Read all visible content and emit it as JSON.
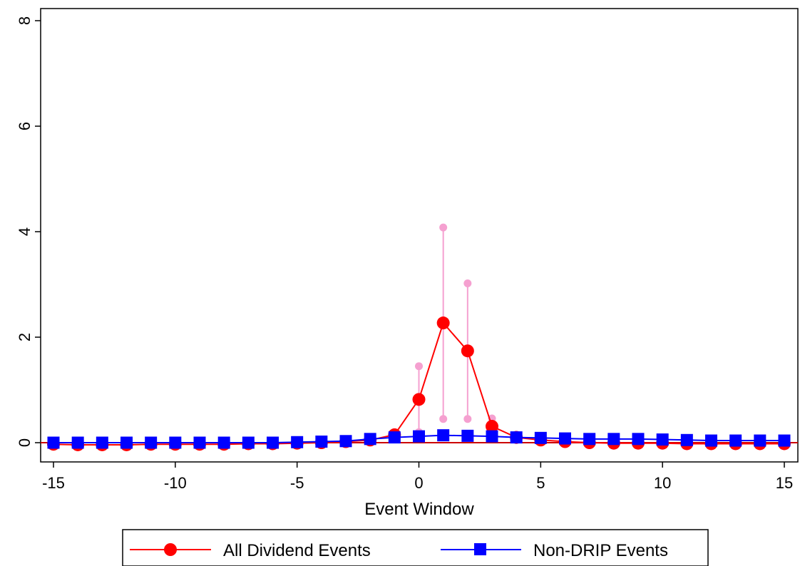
{
  "chart_data": {
    "type": "line",
    "title": "",
    "xlabel": "Event Window",
    "ylabel": "",
    "xlim": [
      -15,
      15
    ],
    "ylim": [
      -0.3,
      8.2
    ],
    "xticks": [
      -15,
      -10,
      -5,
      0,
      5,
      10,
      15
    ],
    "yticks": [
      0,
      2,
      4,
      6,
      8
    ],
    "x": [
      -15,
      -14,
      -13,
      -12,
      -11,
      -10,
      -9,
      -8,
      -7,
      -6,
      -5,
      -4,
      -3,
      -2,
      -1,
      0,
      1,
      2,
      3,
      4,
      5,
      6,
      7,
      8,
      9,
      10,
      11,
      12,
      13,
      14,
      15
    ],
    "zero_line": 0,
    "series": [
      {
        "name": "All Dividend Events",
        "color": "#ff0000",
        "marker": "circle",
        "values": [
          -0.03,
          -0.04,
          -0.04,
          -0.04,
          -0.03,
          -0.03,
          -0.03,
          -0.03,
          -0.02,
          -0.02,
          -0.01,
          0.0,
          0.02,
          0.05,
          0.15,
          0.82,
          2.27,
          1.74,
          0.31,
          0.1,
          0.05,
          0.02,
          0.0,
          -0.01,
          -0.01,
          -0.01,
          -0.02,
          -0.02,
          -0.02,
          -0.02,
          -0.02
        ],
        "ci_color": "#f5a0d0",
        "ci_upper": [
          null,
          null,
          null,
          null,
          null,
          null,
          null,
          null,
          null,
          null,
          null,
          null,
          null,
          null,
          0.18,
          1.45,
          4.08,
          3.02,
          0.46,
          0.15,
          null,
          null,
          null,
          null,
          null,
          null,
          null,
          null,
          null,
          null,
          null
        ],
        "ci_lower": [
          null,
          null,
          null,
          null,
          null,
          null,
          null,
          null,
          null,
          null,
          null,
          null,
          null,
          null,
          0.1,
          0.2,
          0.45,
          0.45,
          0.15,
          0.05,
          null,
          null,
          null,
          null,
          null,
          null,
          null,
          null,
          null,
          null,
          null
        ]
      },
      {
        "name": "Non-DRIP Events",
        "color": "#0000ff",
        "marker": "square",
        "values": [
          0.0,
          0.0,
          0.0,
          0.0,
          0.0,
          0.0,
          0.0,
          0.0,
          0.0,
          0.0,
          0.01,
          0.02,
          0.03,
          0.07,
          0.1,
          0.12,
          0.14,
          0.13,
          0.12,
          0.1,
          0.09,
          0.08,
          0.07,
          0.07,
          0.07,
          0.06,
          0.05,
          0.04,
          0.04,
          0.04,
          0.04
        ],
        "ci_color": "#a8d8ef"
      }
    ],
    "legend": {
      "placement": "bottom"
    }
  }
}
